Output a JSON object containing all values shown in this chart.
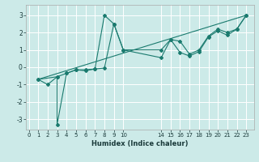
{
  "xlabel": "Humidex (Indice chaleur)",
  "bg_color": "#cceae8",
  "line_color": "#1a7a6e",
  "grid_color": "#ffffff",
  "series1": {
    "x": [
      1,
      2,
      3,
      3,
      4,
      5,
      6,
      7,
      8,
      9,
      10,
      14,
      15,
      16,
      17,
      18,
      19,
      20,
      21,
      22,
      23
    ],
    "y": [
      -0.7,
      -1.0,
      -0.55,
      -3.3,
      -0.35,
      -0.15,
      -0.15,
      -0.1,
      3.0,
      2.5,
      1.0,
      1.0,
      1.6,
      1.5,
      0.75,
      1.0,
      1.8,
      2.2,
      2.0,
      2.2,
      3.0
    ]
  },
  "series2": {
    "x": [
      1,
      3,
      4,
      5,
      6,
      7,
      8,
      9,
      10,
      14,
      15,
      16,
      17,
      18,
      19,
      20,
      21,
      22,
      23
    ],
    "y": [
      -0.7,
      -0.55,
      -0.35,
      -0.15,
      -0.2,
      -0.1,
      -0.05,
      2.5,
      1.0,
      0.55,
      1.6,
      0.85,
      0.65,
      0.9,
      1.75,
      2.1,
      1.85,
      2.2,
      3.0
    ]
  },
  "series3": {
    "x": [
      1,
      23
    ],
    "y": [
      -0.7,
      3.0
    ]
  },
  "xlim": [
    -0.3,
    23.8
  ],
  "ylim": [
    -3.6,
    3.6
  ],
  "xticks": [
    0,
    1,
    2,
    3,
    4,
    5,
    6,
    7,
    8,
    9,
    10,
    14,
    15,
    16,
    17,
    18,
    19,
    20,
    21,
    22,
    23
  ],
  "yticks": [
    -3,
    -2,
    -1,
    0,
    1,
    2,
    3
  ],
  "xlabel_fontsize": 6.0,
  "tick_fontsize": 5.0
}
